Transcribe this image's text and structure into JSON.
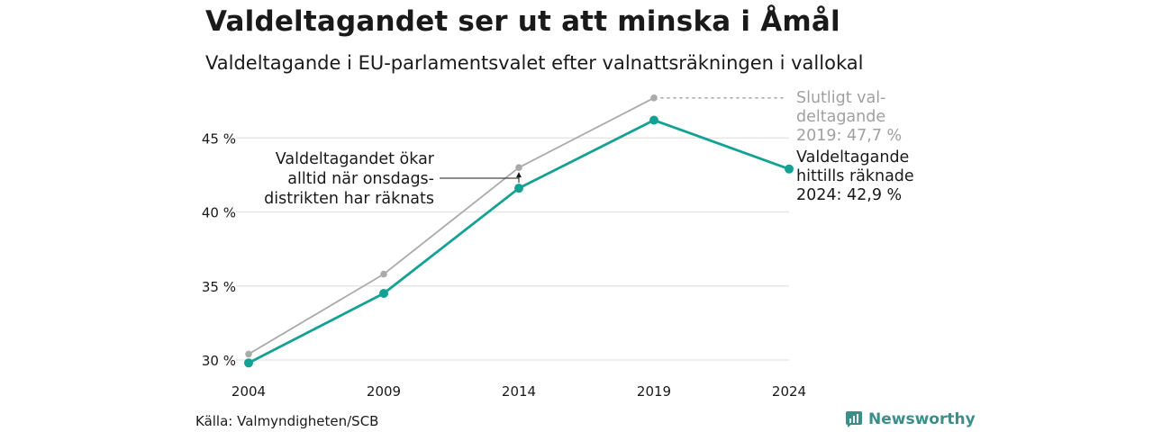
{
  "header": {
    "title": "Valdeltagandet ser ut att minska i Åmål",
    "subtitle": "Valdeltagande i EU-parlamentsvalet efter valnattsräkningen i vallokal"
  },
  "footer": {
    "source": "Källa: Valmyndigheten/SCB",
    "brand": "Newsworthy"
  },
  "colors": {
    "counted": "#12a294",
    "final": "#aaaaaa",
    "grid": "#e3e3e3",
    "text": "#1a1a1a",
    "final_label": "#a0a0a0",
    "brand": "#3a8f8a"
  },
  "chart_data": {
    "type": "line",
    "x": [
      2004,
      2009,
      2014,
      2019,
      2024
    ],
    "ylim": [
      29.5,
      48.5
    ],
    "y_ticks": [
      30,
      35,
      40,
      45
    ],
    "y_tick_labels": [
      "30 %",
      "35 %",
      "40 %",
      "45 %"
    ],
    "x_tick_labels": [
      "2004",
      "2009",
      "2014",
      "2019",
      "2024"
    ],
    "grid": true,
    "series": [
      {
        "key": "final",
        "values": [
          30.4,
          35.8,
          43.0,
          47.7,
          null
        ]
      },
      {
        "key": "counted",
        "values": [
          29.8,
          34.5,
          41.6,
          46.2,
          42.9
        ]
      }
    ],
    "annotations": {
      "onsdag": [
        "Valdeltagandet ökar",
        "alltid när onsdags-",
        "distrikten har räknats"
      ],
      "final_2019": [
        "Slutligt val-",
        "deltagande",
        "2019: 47,7 %"
      ],
      "counted_2024": [
        "Valdeltagande",
        "hittills räknade",
        "2024: 42,9 %"
      ]
    }
  }
}
